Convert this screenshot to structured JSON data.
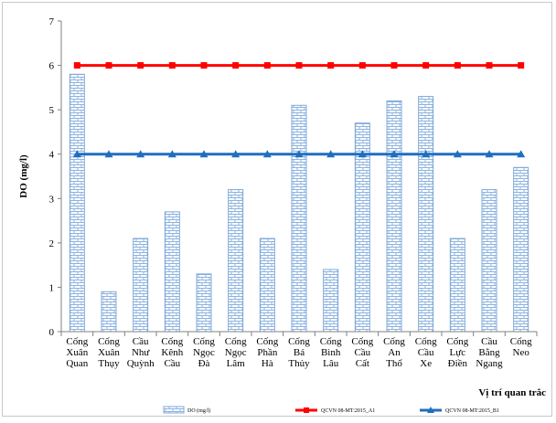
{
  "chart_data": {
    "type": "bar",
    "ylabel": "DO (mg/l)",
    "xlabel": "Vị trí quan trắc",
    "ylim": [
      0,
      7
    ],
    "yticks": [
      "0",
      "1",
      "2",
      "3",
      "4",
      "5",
      "6",
      "7"
    ],
    "grid": false,
    "legend_position": "bottom",
    "categories": [
      [
        "Cống",
        "Xuân",
        "Quan"
      ],
      [
        "Cống",
        "Xuân",
        "Thụy"
      ],
      [
        "Cầu",
        "Như",
        "Quỳnh"
      ],
      [
        "Cống",
        "Kênh",
        "Cầu"
      ],
      [
        "Cống",
        "Ngọc",
        "Đà"
      ],
      [
        "Cống",
        "Ngọc",
        "Lâm"
      ],
      [
        "Cống",
        "Phần",
        "Hà"
      ],
      [
        "Cống",
        "Bá",
        "Thủy"
      ],
      [
        "Cống",
        "Bình",
        "Lâu"
      ],
      [
        "Cống",
        "Cầu",
        "Cất"
      ],
      [
        "Cống",
        "An",
        "Thổ"
      ],
      [
        "Cống",
        "Cầu",
        "Xe"
      ],
      [
        "Cống",
        "Lực",
        "Điền"
      ],
      [
        "Cầu",
        "Bằng",
        "Ngang"
      ],
      [
        "Cống",
        "Neo"
      ]
    ],
    "bar_series": {
      "name": "DO (mg/l)",
      "values": [
        5.8,
        0.9,
        2.1,
        2.7,
        1.3,
        3.2,
        2.1,
        5.1,
        1.4,
        4.7,
        5.2,
        5.3,
        2.1,
        3.2,
        3.7
      ],
      "color": "#7fa8d8"
    },
    "line_series": [
      {
        "name": "QCVN 08-MT:2015_A1",
        "value": 6,
        "color": "#ff0000",
        "marker": "square"
      },
      {
        "name": "QCVN 08-MT:2015_B1",
        "value": 4,
        "color": "#1f6fbf",
        "marker": "triangle"
      }
    ]
  }
}
